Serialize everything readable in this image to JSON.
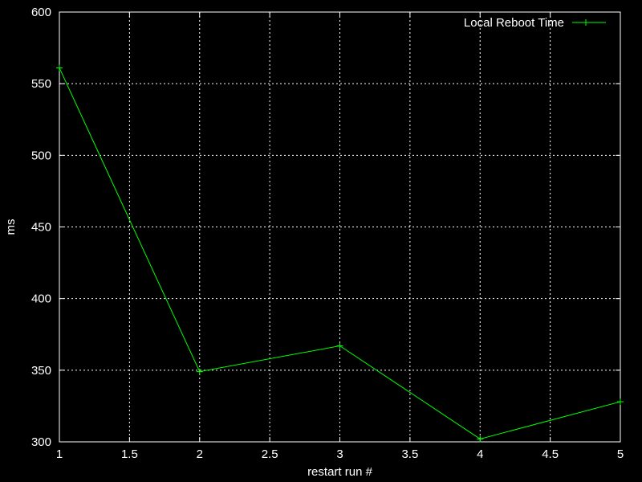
{
  "chart_data": {
    "type": "line",
    "title": "",
    "xlabel": "restart run #",
    "ylabel": "ms",
    "xlim": [
      1,
      5
    ],
    "ylim": [
      300,
      600
    ],
    "xticks": [
      1,
      1.5,
      2,
      2.5,
      3,
      3.5,
      4,
      4.5,
      5
    ],
    "yticks": [
      300,
      350,
      400,
      450,
      500,
      550,
      600
    ],
    "grid": true,
    "legend_position": "top-right",
    "background_color": "#000000",
    "grid_color": "#ffffff",
    "series": [
      {
        "name": "Local Reboot Time",
        "color": "#00ff00",
        "marker": "plus",
        "x": [
          1,
          2,
          3,
          4,
          5
        ],
        "values": [
          561,
          349,
          367,
          302,
          328
        ]
      }
    ]
  }
}
